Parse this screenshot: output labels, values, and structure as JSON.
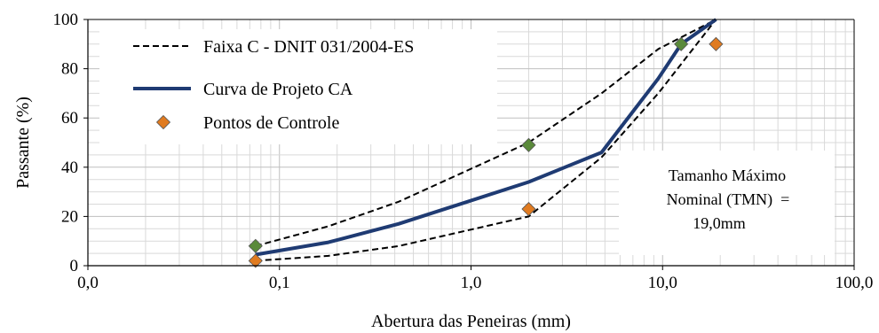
{
  "chart_data": {
    "type": "line",
    "x_scale": "log",
    "xlim": [
      0.01,
      100
    ],
    "ylim": [
      0,
      100
    ],
    "xlabel": "Abertura das Peneiras (mm)",
    "ylabel": "Passante (%)",
    "x_ticks": [
      "0,0",
      "0,1",
      "1,0",
      "10,0",
      "100,0"
    ],
    "y_ticks": [
      "0",
      "20",
      "40",
      "60",
      "80",
      "100"
    ],
    "grid": true,
    "legend_position": "top-left",
    "series": [
      {
        "name": "Faixa C - DNIT 031/2004-ES",
        "style": "dashed",
        "color": "#000000",
        "subseries": [
          {
            "x": [
              0.075,
              0.18,
              0.42,
              2.0,
              4.8,
              9.5,
              19.0
            ],
            "y": [
              8,
              16,
              26,
              50,
              70,
              88,
              100
            ]
          },
          {
            "x": [
              0.075,
              0.18,
              0.42,
              2.0,
              4.8,
              9.5,
              19.0
            ],
            "y": [
              2,
              4,
              8,
              20,
              44,
              70,
              100
            ]
          }
        ]
      },
      {
        "name": "Curva de Projeto CA",
        "style": "solid",
        "color": "#1f3b73",
        "x": [
          0.075,
          0.18,
          0.42,
          2.0,
          4.8,
          9.5,
          12.5,
          19.0
        ],
        "y": [
          4.5,
          9.5,
          17,
          34,
          46,
          76,
          90,
          100
        ]
      },
      {
        "name": "Pontos de Controle",
        "style": "markers",
        "color": "#e07b20",
        "points": [
          {
            "x": 0.075,
            "y": 8,
            "color": "#5a8a3a"
          },
          {
            "x": 0.075,
            "y": 2,
            "color": "#e07b20"
          },
          {
            "x": 2.0,
            "y": 49,
            "color": "#5a8a3a"
          },
          {
            "x": 2.0,
            "y": 23,
            "color": "#e07b20"
          },
          {
            "x": 12.5,
            "y": 90,
            "color": "#5a8a3a"
          },
          {
            "x": 19.0,
            "y": 90,
            "color": "#e07b20"
          }
        ]
      }
    ],
    "annotation": [
      "Tamanho Máximo",
      "Nominal (TMN)  =",
      "19,0mm"
    ]
  }
}
